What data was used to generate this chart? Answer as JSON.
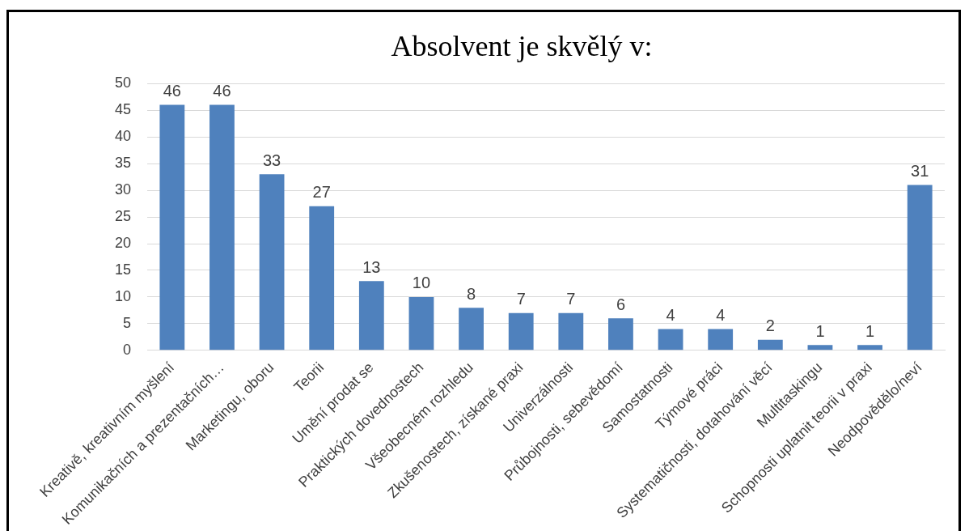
{
  "chart_data": {
    "type": "bar",
    "title": "Absolvent je skvělý v:",
    "categories": [
      "Kreativě, kreativním myšlení",
      "Komunikačních a prezentačních…",
      "Marketingu, oboru",
      "Teorii",
      "Umění prodat se",
      "Praktických dovednostech",
      "Všeobecném rozhledu",
      "Zkušenostech, získané praxi",
      "Univerzálnosti",
      "Průbojnosti, sebevědomí",
      "Samostatnosti",
      "Týmové práci",
      "Systematičnosti, dotahování věcí",
      "Multitaskingu",
      "Schopnosti uplatnit teorii v praxi",
      "Neodpovědělo/neví"
    ],
    "values": [
      46,
      46,
      33,
      27,
      13,
      10,
      8,
      7,
      7,
      6,
      4,
      4,
      2,
      1,
      1,
      31
    ],
    "color": "#4f81bd",
    "ylim": [
      0,
      50
    ],
    "yticks": [
      0,
      5,
      10,
      15,
      20,
      25,
      30,
      35,
      40,
      45,
      50
    ],
    "grid": "y",
    "data_labels": true
  }
}
